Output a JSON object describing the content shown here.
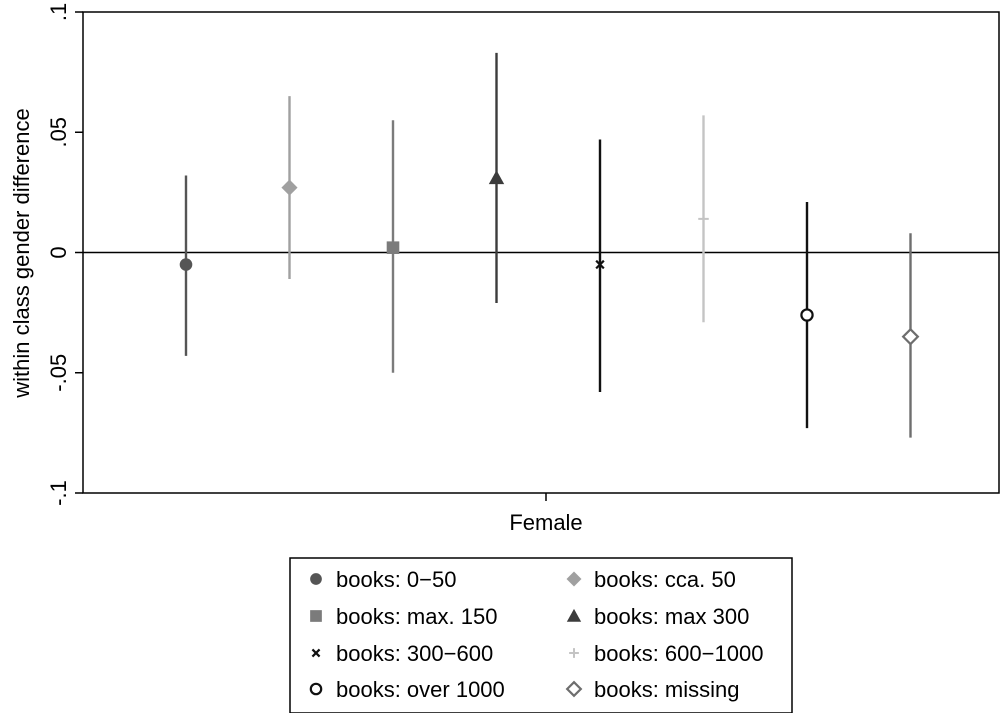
{
  "chart_data": {
    "type": "scatter",
    "title": "",
    "xlabel": "Female",
    "ylabel": "within class gender difference",
    "ylim": [
      -0.1,
      0.1
    ],
    "yticks": [
      -0.1,
      -0.05,
      0,
      0.05,
      0.1
    ],
    "ytick_labels": [
      "-.1",
      "-.05",
      "0",
      ".05",
      ".1"
    ],
    "reference_line_y": 0,
    "grid": false,
    "legend_position": "bottom",
    "series": [
      {
        "name": "books: 0−50",
        "marker": "circle",
        "color": "#555555",
        "estimate": -0.005,
        "ci_low": -0.043,
        "ci_high": 0.032
      },
      {
        "name": "books: cca. 50",
        "marker": "diamond",
        "color": "#a0a0a0",
        "estimate": 0.027,
        "ci_low": -0.011,
        "ci_high": 0.065
      },
      {
        "name": "books: max. 150",
        "marker": "square",
        "color": "#7b7b7b",
        "estimate": 0.002,
        "ci_low": -0.05,
        "ci_high": 0.055
      },
      {
        "name": "books: max 300",
        "marker": "triangle",
        "color": "#3c3c3c",
        "estimate": 0.031,
        "ci_low": -0.021,
        "ci_high": 0.083
      },
      {
        "name": "books: 300−600",
        "marker": "x",
        "color": "#111111",
        "estimate": -0.005,
        "ci_low": -0.058,
        "ci_high": 0.047
      },
      {
        "name": "books: 600−1000",
        "marker": "plus",
        "color": "#c4c4c4",
        "estimate": 0.014,
        "ci_low": -0.029,
        "ci_high": 0.057
      },
      {
        "name": "books: over 1000",
        "marker": "hollow-circle",
        "color": "#111111",
        "estimate": -0.026,
        "ci_low": -0.073,
        "ci_high": 0.021
      },
      {
        "name": "books: missing",
        "marker": "hollow-diamond",
        "color": "#6e6e6e",
        "estimate": -0.035,
        "ci_low": -0.077,
        "ci_high": 0.008
      }
    ]
  }
}
